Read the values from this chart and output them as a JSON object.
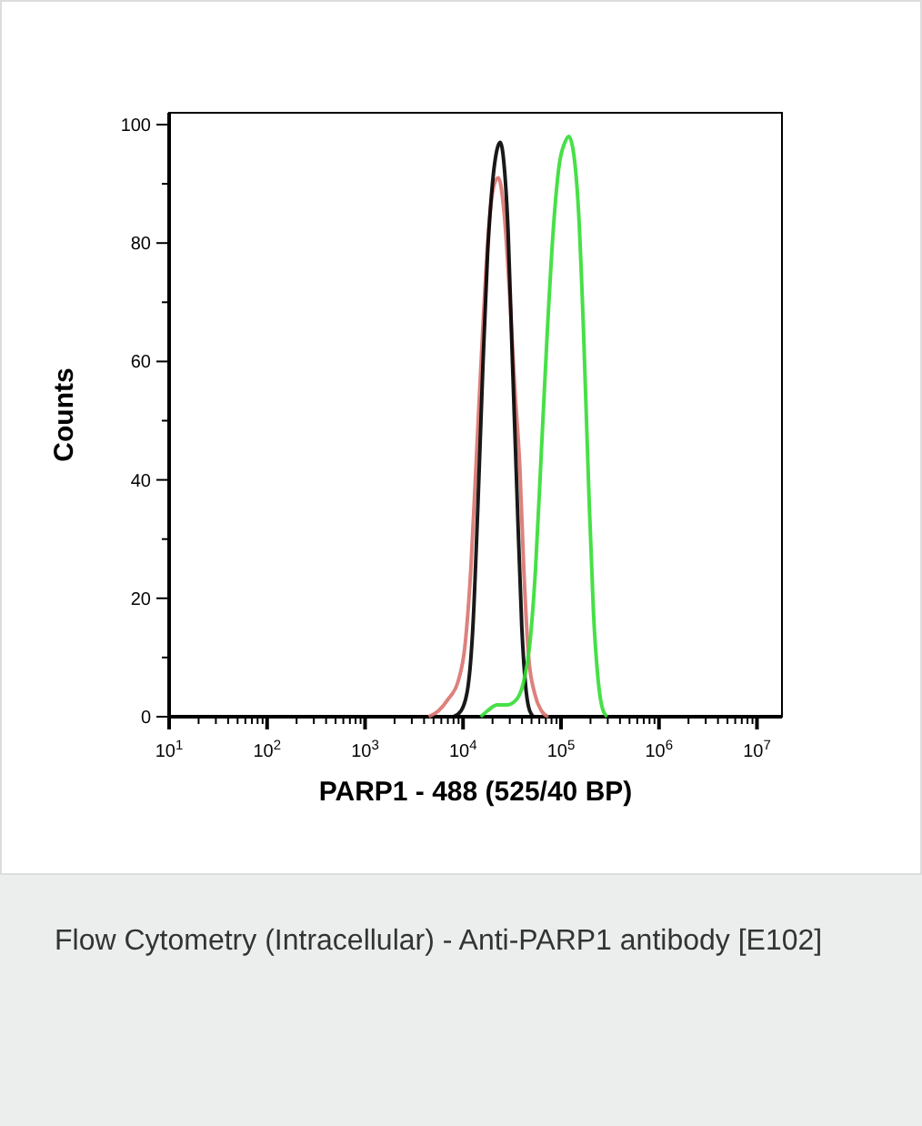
{
  "chart_data": {
    "type": "line",
    "xlabel": "PARP1 - 488  (525/40 BP)",
    "ylabel": "Counts",
    "log": "x",
    "grid": false,
    "marker": "none",
    "line_style": "solid",
    "xlim": [
      10,
      18000000
    ],
    "ylim": [
      0,
      102
    ],
    "xticks": [
      {
        "value": 10,
        "label": "10$^{1}$"
      },
      {
        "value": 20,
        "label": null
      },
      {
        "value": 30,
        "label": null
      },
      {
        "value": 40,
        "label": null
      },
      {
        "value": 50,
        "label": null
      },
      {
        "value": 60,
        "label": null
      },
      {
        "value": 70,
        "label": null
      },
      {
        "value": 80,
        "label": null
      },
      {
        "value": 90,
        "label": null
      },
      {
        "value": 100,
        "label": "10$^{2}$"
      },
      {
        "value": 200,
        "label": null
      },
      {
        "value": 300,
        "label": null
      },
      {
        "value": 400,
        "label": null
      },
      {
        "value": 500,
        "label": null
      },
      {
        "value": 600,
        "label": null
      },
      {
        "value": 700,
        "label": null
      },
      {
        "value": 800,
        "label": null
      },
      {
        "value": 900,
        "label": null
      },
      {
        "value": 1000,
        "label": "10$^{3}$"
      },
      {
        "value": 2000,
        "label": null
      },
      {
        "value": 3000,
        "label": null
      },
      {
        "value": 4000,
        "label": null
      },
      {
        "value": 5000,
        "label": null
      },
      {
        "value": 6000,
        "label": null
      },
      {
        "value": 7000,
        "label": null
      },
      {
        "value": 8000,
        "label": null
      },
      {
        "value": 9000,
        "label": null
      },
      {
        "value": 10000,
        "label": "10$^{4}$"
      },
      {
        "value": 20000,
        "label": null
      },
      {
        "value": 30000,
        "label": null
      },
      {
        "value": 40000,
        "label": null
      },
      {
        "value": 50000,
        "label": null
      },
      {
        "value": 60000,
        "label": null
      },
      {
        "value": 70000,
        "label": null
      },
      {
        "value": 80000,
        "label": null
      },
      {
        "value": 90000,
        "label": null
      },
      {
        "value": 100000,
        "label": "10$^{5}$"
      },
      {
        "value": 200000,
        "label": null
      },
      {
        "value": 300000,
        "label": null
      },
      {
        "value": 400000,
        "label": null
      },
      {
        "value": 500000,
        "label": null
      },
      {
        "value": 600000,
        "label": null
      },
      {
        "value": 700000,
        "label": null
      },
      {
        "value": 800000,
        "label": null
      },
      {
        "value": 900000,
        "label": null
      },
      {
        "value": 1000000,
        "label": "10$^{6}$"
      },
      {
        "value": 2000000,
        "label": null
      },
      {
        "value": 3000000,
        "label": null
      },
      {
        "value": 4000000,
        "label": null
      },
      {
        "value": 5000000,
        "label": null
      },
      {
        "value": 6000000,
        "label": null
      },
      {
        "value": 7000000,
        "label": null
      },
      {
        "value": 8000000,
        "label": null
      },
      {
        "value": 9000000,
        "label": null
      },
      {
        "value": 10000000,
        "label": "10$^{7}$"
      }
    ],
    "yticks": [
      0,
      {
        "value": 10,
        "label": null
      },
      20,
      {
        "value": 30,
        "label": null
      },
      40,
      {
        "value": 50,
        "label": null
      },
      60,
      {
        "value": 70,
        "label": null
      },
      80,
      {
        "value": 90,
        "label": null
      },
      100
    ],
    "series": [
      {
        "color": "#d9736e",
        "x": [
          4467,
          5623,
          7079,
          8913,
          10470,
          12020,
          13800,
          15850,
          18200,
          20890,
          22910,
          26300,
          30200,
          33880,
          38020,
          41690,
          46770,
          53700,
          63100,
          74130
        ],
        "values": [
          0,
          1,
          3,
          6,
          12,
          25,
          45,
          65,
          82,
          90,
          91,
          85,
          70,
          55,
          42,
          25,
          10,
          4,
          1,
          0
        ]
      },
      {
        "color": "#000000",
        "x": [
          7943,
          9550,
          11220,
          12590,
          14130,
          15850,
          17780,
          19950,
          22390,
          23990,
          26300,
          28840,
          31620,
          35480,
          39810,
          43650,
          47860,
          52480
        ],
        "values": [
          0,
          1,
          5,
          15,
          35,
          58,
          78,
          90,
          96,
          97,
          93,
          82,
          62,
          38,
          15,
          5,
          1,
          0
        ]
      },
      {
        "color": "#33dd33",
        "x": [
          15140,
          17780,
          22390,
          28180,
          35480,
          41690,
          47860,
          54950,
          63100,
          72440,
          83180,
          95500,
          109600,
          120200,
          134900,
          151400,
          169800,
          190500,
          213800,
          239900,
          269200,
          295100
        ],
        "values": [
          0,
          1,
          2,
          2,
          3,
          6,
          12,
          25,
          45,
          65,
          82,
          93,
          97,
          98,
          95,
          85,
          65,
          40,
          18,
          6,
          1,
          0
        ]
      }
    ],
    "annotations": [
      "Flow Cytometry (Intracellular) - Anti-PARP1 antibody [E102]"
    ]
  }
}
